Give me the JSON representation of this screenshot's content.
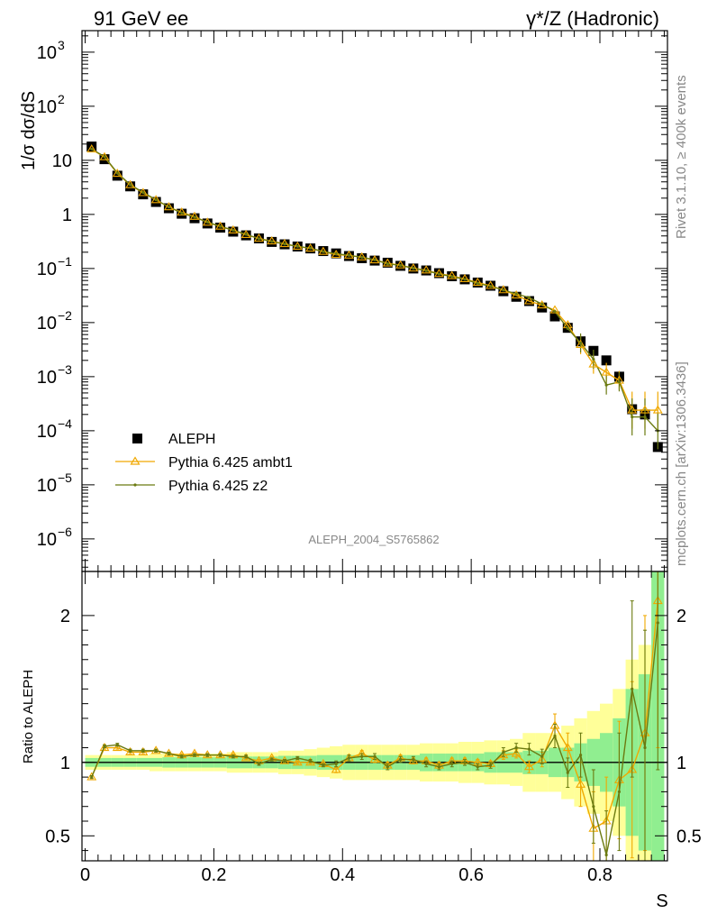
{
  "header": {
    "left": "91 GeV ee",
    "right": "γ*/Z (Hadronic)"
  },
  "side_labels": {
    "rivet": "Rivet 3.1.10, ≥ 400k events",
    "mcplots": "mcplots.cern.ch [arXiv:1306.3436]"
  },
  "watermark": "ALEPH_2004_S5765862",
  "colors": {
    "aleph": "#000000",
    "ambt1": "#f0a800",
    "z2": "#6b7a10",
    "band_inner": "#90ee90",
    "band_outer": "#ffff99"
  },
  "chart_data": [
    {
      "type": "scatter",
      "title": "",
      "xlabel": "S",
      "ylabel": "1/σ dσ/dS",
      "yscale": "log",
      "xlim": [
        -0.005,
        0.905
      ],
      "ylim": [
        2.5e-07,
        2500.0
      ],
      "x_ticks": [
        "0",
        "0.2",
        "0.4",
        "0.6",
        "0.8"
      ],
      "y_ticks": [
        "10^-6",
        "10^-5",
        "10^-4",
        "10^-3",
        "10^-2",
        "10^-1",
        "1",
        "10",
        "10^2",
        "10^3"
      ],
      "legend": {
        "placement": "bottom-left",
        "entries": [
          "ALEPH",
          "Pythia 6.425 ambt1",
          "Pythia 6.425 z2"
        ]
      },
      "series": [
        {
          "name": "ALEPH",
          "marker": "square",
          "x": [
            0.01,
            0.03,
            0.05,
            0.07,
            0.09,
            0.11,
            0.13,
            0.15,
            0.17,
            0.19,
            0.21,
            0.23,
            0.25,
            0.27,
            0.29,
            0.31,
            0.33,
            0.35,
            0.37,
            0.39,
            0.41,
            0.43,
            0.45,
            0.47,
            0.49,
            0.51,
            0.53,
            0.55,
            0.57,
            0.59,
            0.61,
            0.63,
            0.65,
            0.67,
            0.69,
            0.71,
            0.73,
            0.75,
            0.77,
            0.79,
            0.81,
            0.83,
            0.85,
            0.87,
            0.89
          ],
          "y": [
            18,
            10.5,
            5.2,
            3.3,
            2.35,
            1.7,
            1.3,
            1.03,
            0.85,
            0.68,
            0.57,
            0.48,
            0.41,
            0.36,
            0.31,
            0.28,
            0.255,
            0.235,
            0.21,
            0.19,
            0.17,
            0.155,
            0.14,
            0.128,
            0.112,
            0.1,
            0.092,
            0.082,
            0.072,
            0.063,
            0.055,
            0.048,
            0.038,
            0.03,
            0.025,
            0.019,
            0.013,
            0.008,
            0.0045,
            0.003,
            0.002,
            0.001,
            0.00025,
            0.0002,
            5e-05
          ]
        },
        {
          "name": "Pythia 6.425 ambt1",
          "marker": "open-triangle",
          "x": [
            0.01,
            0.03,
            0.05,
            0.07,
            0.09,
            0.11,
            0.13,
            0.15,
            0.17,
            0.19,
            0.21,
            0.23,
            0.25,
            0.27,
            0.29,
            0.31,
            0.33,
            0.35,
            0.37,
            0.39,
            0.41,
            0.43,
            0.45,
            0.47,
            0.49,
            0.51,
            0.53,
            0.55,
            0.57,
            0.59,
            0.61,
            0.63,
            0.65,
            0.67,
            0.69,
            0.71,
            0.73,
            0.75,
            0.77,
            0.79,
            0.81,
            0.83,
            0.85,
            0.87,
            0.89
          ],
          "y": [
            16,
            11.5,
            5.7,
            3.5,
            2.5,
            1.85,
            1.37,
            1.09,
            0.91,
            0.71,
            0.6,
            0.51,
            0.42,
            0.36,
            0.32,
            0.285,
            0.255,
            0.235,
            0.205,
            0.18,
            0.175,
            0.162,
            0.143,
            0.125,
            0.115,
            0.101,
            0.093,
            0.08,
            0.073,
            0.064,
            0.055,
            0.048,
            0.04,
            0.032,
            0.025,
            0.021,
            0.017,
            0.009,
            0.0039,
            0.0017,
            0.0012,
            0.00085,
            0.00024,
            0.00024,
            0.00024
          ]
        },
        {
          "name": "Pythia 6.425 z2",
          "marker": "dot",
          "x": [
            0.01,
            0.03,
            0.05,
            0.07,
            0.09,
            0.11,
            0.13,
            0.15,
            0.17,
            0.19,
            0.21,
            0.23,
            0.25,
            0.27,
            0.29,
            0.31,
            0.33,
            0.35,
            0.37,
            0.39,
            0.41,
            0.43,
            0.45,
            0.47,
            0.49,
            0.51,
            0.53,
            0.55,
            0.57,
            0.59,
            0.61,
            0.63,
            0.65,
            0.67,
            0.69,
            0.71,
            0.73,
            0.75,
            0.77,
            0.79,
            0.81,
            0.83,
            0.85,
            0.87,
            0.89
          ],
          "y": [
            16.2,
            11.7,
            5.85,
            3.55,
            2.55,
            1.87,
            1.37,
            1.06,
            0.89,
            0.72,
            0.6,
            0.51,
            0.43,
            0.355,
            0.315,
            0.283,
            0.257,
            0.238,
            0.205,
            0.188,
            0.175,
            0.161,
            0.145,
            0.122,
            0.114,
            0.101,
            0.091,
            0.079,
            0.071,
            0.063,
            0.053,
            0.047,
            0.04,
            0.034,
            0.029,
            0.022,
            0.016,
            0.0078,
            0.0042,
            0.0021,
            0.0007,
            0.0008,
            0.00018,
            0.00018,
            0.0001
          ]
        }
      ]
    },
    {
      "type": "scatter",
      "title": "",
      "xlabel": "S",
      "ylabel": "Ratio to ALEPH",
      "xlim": [
        -0.005,
        0.905
      ],
      "ylim": [
        0.33,
        2.3
      ],
      "x_ticks": [
        "0",
        "0.2",
        "0.4",
        "0.6",
        "0.8"
      ],
      "y_ticks": [
        "0.5",
        "1",
        "2"
      ],
      "reference_line": 1,
      "bands": {
        "x_edges": [
          0,
          0.02,
          0.04,
          0.06,
          0.08,
          0.1,
          0.12,
          0.14,
          0.16,
          0.18,
          0.2,
          0.22,
          0.24,
          0.26,
          0.28,
          0.3,
          0.32,
          0.34,
          0.36,
          0.38,
          0.4,
          0.42,
          0.44,
          0.46,
          0.48,
          0.5,
          0.52,
          0.54,
          0.56,
          0.58,
          0.6,
          0.62,
          0.64,
          0.66,
          0.68,
          0.7,
          0.72,
          0.74,
          0.76,
          0.78,
          0.8,
          0.82,
          0.84,
          0.86,
          0.88,
          0.9
        ],
        "inner_halfwidth": [
          0.03,
          0.03,
          0.03,
          0.03,
          0.03,
          0.03,
          0.035,
          0.035,
          0.035,
          0.035,
          0.035,
          0.04,
          0.04,
          0.04,
          0.04,
          0.045,
          0.045,
          0.045,
          0.05,
          0.05,
          0.05,
          0.05,
          0.05,
          0.05,
          0.05,
          0.05,
          0.06,
          0.06,
          0.06,
          0.06,
          0.06,
          0.07,
          0.07,
          0.07,
          0.08,
          0.08,
          0.1,
          0.1,
          0.13,
          0.16,
          0.2,
          0.3,
          0.5,
          0.6,
          1.3
        ],
        "outer_halfwidth": [
          0.05,
          0.05,
          0.05,
          0.05,
          0.05,
          0.06,
          0.06,
          0.06,
          0.06,
          0.06,
          0.06,
          0.07,
          0.07,
          0.07,
          0.07,
          0.08,
          0.08,
          0.09,
          0.1,
          0.11,
          0.12,
          0.12,
          0.12,
          0.12,
          0.12,
          0.12,
          0.13,
          0.13,
          0.13,
          0.14,
          0.14,
          0.15,
          0.15,
          0.16,
          0.2,
          0.2,
          0.2,
          0.25,
          0.3,
          0.35,
          0.4,
          0.5,
          0.7,
          0.8,
          1.3
        ]
      },
      "series": [
        {
          "name": "Pythia 6.425 ambt1",
          "marker": "open-triangle",
          "x": [
            0.01,
            0.03,
            0.05,
            0.07,
            0.09,
            0.11,
            0.13,
            0.15,
            0.17,
            0.19,
            0.21,
            0.23,
            0.25,
            0.27,
            0.29,
            0.31,
            0.33,
            0.35,
            0.37,
            0.39,
            0.41,
            0.43,
            0.45,
            0.47,
            0.49,
            0.51,
            0.53,
            0.55,
            0.57,
            0.59,
            0.61,
            0.63,
            0.65,
            0.67,
            0.69,
            0.71,
            0.73,
            0.75,
            0.77,
            0.79,
            0.81,
            0.83,
            0.85,
            0.87,
            0.89
          ],
          "y": [
            0.9,
            1.1,
            1.1,
            1.07,
            1.07,
            1.08,
            1.06,
            1.05,
            1.06,
            1.05,
            1.05,
            1.05,
            1.03,
            1.01,
            1.03,
            1.01,
            1.0,
            1.0,
            0.99,
            0.95,
            1.03,
            1.06,
            1.02,
            0.98,
            1.03,
            1.01,
            1.01,
            0.98,
            1.01,
            1.01,
            1.0,
            0.99,
            1.05,
            1.06,
            0.97,
            1.02,
            1.25,
            1.1,
            0.85,
            0.55,
            0.6,
            0.88,
            0.95,
            1.2,
            2.1
          ],
          "err": [
            0.01,
            0.01,
            0.01,
            0.01,
            0.01,
            0.01,
            0.01,
            0.01,
            0.01,
            0.01,
            0.01,
            0.01,
            0.01,
            0.01,
            0.01,
            0.01,
            0.01,
            0.01,
            0.01,
            0.02,
            0.02,
            0.02,
            0.02,
            0.02,
            0.02,
            0.02,
            0.02,
            0.02,
            0.02,
            0.02,
            0.02,
            0.02,
            0.03,
            0.03,
            0.04,
            0.05,
            0.08,
            0.1,
            0.15,
            0.25,
            0.3,
            0.4,
            0.6,
            0.8,
            1.0
          ]
        },
        {
          "name": "Pythia 6.425 z2",
          "marker": "dot",
          "x": [
            0.01,
            0.03,
            0.05,
            0.07,
            0.09,
            0.11,
            0.13,
            0.15,
            0.17,
            0.19,
            0.21,
            0.23,
            0.25,
            0.27,
            0.29,
            0.31,
            0.33,
            0.35,
            0.37,
            0.39,
            0.41,
            0.43,
            0.45,
            0.47,
            0.49,
            0.51,
            0.53,
            0.55,
            0.57,
            0.59,
            0.61,
            0.63,
            0.65,
            0.67,
            0.69,
            0.71,
            0.73,
            0.75,
            0.77,
            0.79,
            0.81,
            0.83,
            0.85,
            0.87,
            0.89
          ],
          "y": [
            0.9,
            1.11,
            1.12,
            1.08,
            1.08,
            1.08,
            1.06,
            1.04,
            1.05,
            1.05,
            1.05,
            1.04,
            1.04,
            0.99,
            1.02,
            1.01,
            1.03,
            1.01,
            0.98,
            0.99,
            1.03,
            1.04,
            1.04,
            0.97,
            1.02,
            1.02,
            0.99,
            0.97,
            0.99,
            1.0,
            0.97,
            0.98,
            1.07,
            1.1,
            1.09,
            1.04,
            1.18,
            0.93,
            1.05,
            0.7,
            0.37,
            0.8,
            1.5,
            1.1,
            1.95
          ],
          "err": [
            0.01,
            0.01,
            0.01,
            0.01,
            0.01,
            0.01,
            0.01,
            0.01,
            0.01,
            0.01,
            0.01,
            0.01,
            0.01,
            0.01,
            0.01,
            0.01,
            0.01,
            0.01,
            0.01,
            0.02,
            0.02,
            0.02,
            0.02,
            0.02,
            0.02,
            0.02,
            0.02,
            0.02,
            0.02,
            0.02,
            0.02,
            0.02,
            0.03,
            0.03,
            0.04,
            0.05,
            0.08,
            0.1,
            0.15,
            0.25,
            0.3,
            0.4,
            0.6,
            0.8,
            1.0
          ]
        }
      ]
    }
  ]
}
